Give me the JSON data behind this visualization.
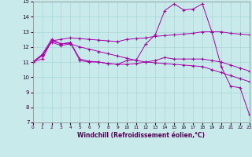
{
  "title": "",
  "xlabel": "Windchill (Refroidissement éolien,°C)",
  "xlim": [
    0,
    23
  ],
  "ylim": [
    7,
    15
  ],
  "yticks": [
    7,
    8,
    9,
    10,
    11,
    12,
    13,
    14,
    15
  ],
  "xticks": [
    0,
    1,
    2,
    3,
    4,
    5,
    6,
    7,
    8,
    9,
    10,
    11,
    12,
    13,
    14,
    15,
    16,
    17,
    18,
    19,
    20,
    21,
    22,
    23
  ],
  "background_color": "#c8eaea",
  "grid_color": "#a8d8d8",
  "line_color": "#aa00aa",
  "lines": [
    {
      "x": [
        0,
        1,
        2,
        3,
        4,
        5,
        6,
        7,
        8,
        9,
        10,
        11,
        12,
        13,
        14,
        15,
        16,
        17,
        18,
        19,
        20,
        21,
        22,
        23
      ],
      "y": [
        11.0,
        11.5,
        12.5,
        12.2,
        12.3,
        11.2,
        11.05,
        11.0,
        10.9,
        10.85,
        11.1,
        11.15,
        12.2,
        12.8,
        14.4,
        14.85,
        14.45,
        14.5,
        14.85,
        13.0,
        10.7,
        9.4,
        9.3,
        7.5
      ]
    },
    {
      "x": [
        0,
        1,
        2,
        3,
        4,
        5,
        6,
        7,
        8,
        9,
        10,
        11,
        12,
        13,
        14,
        15,
        16,
        17,
        18,
        19,
        20,
        21,
        22,
        23
      ],
      "y": [
        11.0,
        11.2,
        12.4,
        12.5,
        12.6,
        12.55,
        12.5,
        12.45,
        12.4,
        12.35,
        12.5,
        12.55,
        12.6,
        12.7,
        12.75,
        12.8,
        12.85,
        12.9,
        13.0,
        13.0,
        13.0,
        12.9,
        12.85,
        12.8
      ]
    },
    {
      "x": [
        0,
        1,
        2,
        3,
        4,
        5,
        6,
        7,
        8,
        9,
        10,
        11,
        12,
        13,
        14,
        15,
        16,
        17,
        18,
        19,
        20,
        21,
        22,
        23
      ],
      "y": [
        11.0,
        11.4,
        12.4,
        12.2,
        12.25,
        11.1,
        11.0,
        11.0,
        10.9,
        10.85,
        10.85,
        10.9,
        11.0,
        11.1,
        11.3,
        11.2,
        11.2,
        11.2,
        11.2,
        11.1,
        11.0,
        10.8,
        10.6,
        10.4
      ]
    },
    {
      "x": [
        0,
        1,
        2,
        3,
        4,
        5,
        6,
        7,
        8,
        9,
        10,
        11,
        12,
        13,
        14,
        15,
        16,
        17,
        18,
        19,
        20,
        21,
        22,
        23
      ],
      "y": [
        11.0,
        11.45,
        12.3,
        12.1,
        12.2,
        12.0,
        11.85,
        11.7,
        11.55,
        11.4,
        11.25,
        11.1,
        11.0,
        10.95,
        10.9,
        10.85,
        10.8,
        10.75,
        10.7,
        10.5,
        10.3,
        10.1,
        9.9,
        9.7
      ]
    }
  ]
}
